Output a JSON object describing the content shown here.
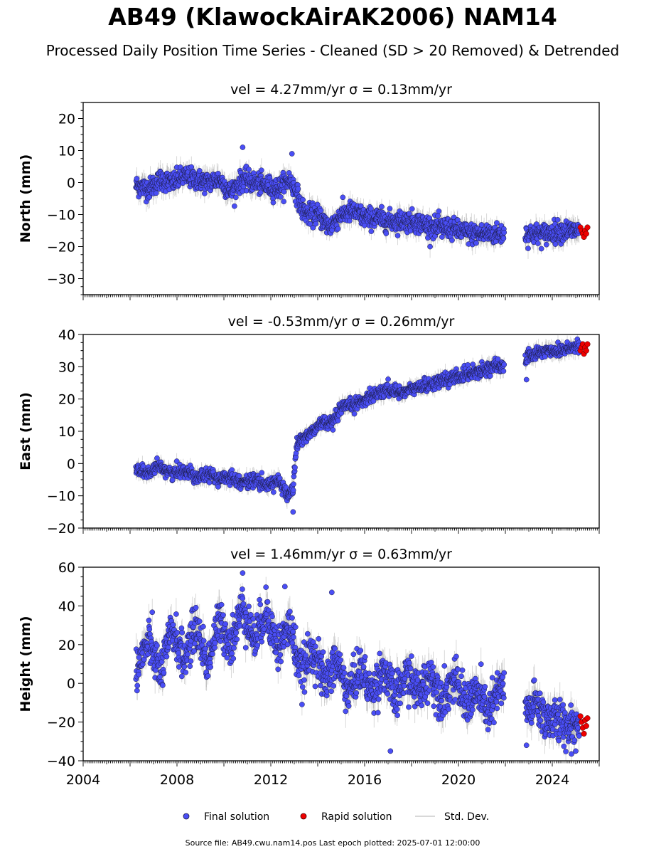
{
  "figure": {
    "title": "AB49 (KlawockAirAK2006) NAM14",
    "subtitle": "Processed Daily Position Time Series - Cleaned (SD > 20 Removed) & Detrended",
    "source_note": "Source file: AB49.cwu.nam14.pos  Last epoch plotted: 2025-07-01 12:00:00"
  },
  "legend": {
    "placement": "bottom-center",
    "items": [
      {
        "label": "Final solution",
        "marker": "circle",
        "color": "#4a4ef5"
      },
      {
        "label": "Rapid solution",
        "marker": "circle",
        "color": "#ee0000"
      },
      {
        "label": "Std. Dev.",
        "marker": "line",
        "color": "#cccccc"
      }
    ]
  },
  "colors": {
    "final": "#4a4ef5",
    "rapid": "#ee0000",
    "stddev": "#a8a8a8",
    "edge": "#1a1a40"
  },
  "chart_data": [
    {
      "type": "scatter",
      "title": "vel = 4.27mm/yr   σ = 0.13mm/yr",
      "ylabel": "North (mm)",
      "xlim": [
        2004.0,
        2026.0
      ],
      "ylim": [
        -35,
        25
      ],
      "yticks": [
        -30,
        -20,
        -10,
        0,
        10,
        20
      ],
      "ytick_labels": [
        "−30",
        "−20",
        "−10",
        "0",
        "10",
        "20"
      ],
      "xtick_labels_shown": false,
      "series": [
        {
          "name": "Final solution",
          "x": [
            2006.3,
            2006.8,
            2007.3,
            2007.8,
            2008.3,
            2008.8,
            2009.3,
            2009.8,
            2010.3,
            2010.8,
            2011.3,
            2011.8,
            2012.3,
            2012.8,
            2013.1,
            2013.3,
            2013.6,
            2014.0,
            2014.5,
            2015.0,
            2015.5,
            2016.0,
            2016.5,
            2017.0,
            2017.5,
            2018.0,
            2018.5,
            2019.0,
            2019.5,
            2020.0,
            2020.5,
            2021.0,
            2021.5,
            2021.9,
            2022.9,
            2023.3,
            2023.7,
            2024.3,
            2024.7,
            2025.1
          ],
          "y": [
            -1,
            -2,
            1,
            0,
            2,
            1,
            0,
            1,
            -3,
            1,
            0,
            -1,
            -2,
            1,
            -3,
            -8,
            -10,
            -10,
            -14,
            -10,
            -9,
            -11,
            -11,
            -12,
            -12,
            -12,
            -13,
            -14,
            -14,
            -15,
            -16,
            -16,
            -16,
            -16,
            -16,
            -16,
            -16,
            -15,
            -15,
            -15
          ]
        },
        {
          "name": "Rapid solution",
          "x": [
            2025.2,
            2025.25,
            2025.3,
            2025.35,
            2025.4,
            2025.45,
            2025.5
          ],
          "y": [
            -14,
            -15,
            -16,
            -17,
            -15,
            -16,
            -14
          ]
        }
      ],
      "outliers": {
        "x": [
          2010.8,
          2012.9,
          2019.3
        ],
        "y": [
          11,
          9,
          -17
        ]
      }
    },
    {
      "type": "scatter",
      "title": "vel = -0.53mm/yr   σ = 0.26mm/yr",
      "ylabel": "East (mm)",
      "xlim": [
        2004.0,
        2026.0
      ],
      "ylim": [
        -20,
        40
      ],
      "yticks": [
        -20,
        -10,
        0,
        10,
        20,
        30,
        40
      ],
      "ytick_labels": [
        "−20",
        "−10",
        "0",
        "10",
        "20",
        "30",
        "40"
      ],
      "xtick_labels_shown": false,
      "series": [
        {
          "name": "Final solution",
          "x": [
            2006.3,
            2006.8,
            2007.3,
            2007.8,
            2008.3,
            2008.8,
            2009.3,
            2009.8,
            2010.3,
            2010.8,
            2011.3,
            2011.8,
            2012.3,
            2012.7,
            2012.95,
            2013.1,
            2013.4,
            2013.8,
            2014.2,
            2014.6,
            2015.0,
            2015.4,
            2015.8,
            2016.2,
            2016.6,
            2017.0,
            2017.5,
            2018.0,
            2018.5,
            2019.0,
            2019.5,
            2020.0,
            2020.5,
            2021.0,
            2021.5,
            2021.9,
            2022.9,
            2023.3,
            2023.7,
            2024.3,
            2024.7,
            2025.1
          ],
          "y": [
            -2,
            -3,
            -1,
            -3,
            -2,
            -4,
            -3,
            -5,
            -4,
            -6,
            -5,
            -7,
            -5,
            -10,
            -8,
            6,
            8,
            10,
            13,
            12,
            17,
            18,
            19,
            21,
            22,
            23,
            22,
            23,
            24,
            25,
            26,
            27,
            28,
            29,
            30,
            30,
            33,
            34,
            35,
            35,
            36,
            36
          ]
        },
        {
          "name": "Rapid solution",
          "x": [
            2025.2,
            2025.25,
            2025.3,
            2025.35,
            2025.4,
            2025.45,
            2025.5
          ],
          "y": [
            35,
            36,
            37,
            34,
            36,
            35,
            37
          ]
        }
      ],
      "outliers": {
        "x": [
          2012.95,
          2022.9
        ],
        "y": [
          -15,
          26
        ]
      }
    },
    {
      "type": "scatter",
      "title": "vel = 1.46mm/yr   σ = 0.63mm/yr",
      "ylabel": "Height (mm)",
      "xlim": [
        2004.0,
        2026.0
      ],
      "ylim": [
        -40,
        60
      ],
      "yticks": [
        -40,
        -20,
        0,
        20,
        40,
        60
      ],
      "ytick_labels": [
        "−40",
        "−20",
        "0",
        "20",
        "40",
        "60"
      ],
      "xticks": [
        2004,
        2008,
        2012,
        2016,
        2020,
        2024
      ],
      "xtick_labels": [
        "2004",
        "2008",
        "2012",
        "2016",
        "2020",
        "2024"
      ],
      "series": [
        {
          "name": "Final solution",
          "x": [
            2006.3,
            2006.8,
            2007.3,
            2007.8,
            2008.3,
            2008.8,
            2009.3,
            2009.8,
            2010.3,
            2010.8,
            2011.3,
            2011.8,
            2012.3,
            2012.8,
            2013.3,
            2013.8,
            2014.3,
            2014.8,
            2015.3,
            2015.8,
            2016.3,
            2016.8,
            2017.3,
            2017.8,
            2018.3,
            2018.8,
            2019.3,
            2019.8,
            2020.3,
            2020.8,
            2021.3,
            2021.8,
            2022.9,
            2023.3,
            2023.7,
            2024.3,
            2024.7,
            2025.1
          ],
          "y": [
            8,
            22,
            5,
            28,
            12,
            30,
            10,
            32,
            20,
            40,
            22,
            38,
            18,
            30,
            5,
            18,
            0,
            12,
            -5,
            8,
            -5,
            8,
            -8,
            5,
            -5,
            5,
            -8,
            2,
            -10,
            -5,
            -15,
            -2,
            -15,
            -10,
            -18,
            -20,
            -22,
            -20
          ]
        },
        {
          "name": "Rapid solution",
          "x": [
            2025.2,
            2025.25,
            2025.3,
            2025.35,
            2025.4,
            2025.45,
            2025.5
          ],
          "y": [
            -17,
            -20,
            -23,
            -26,
            -19,
            -22,
            -18
          ]
        }
      ],
      "outliers": {
        "x": [
          2010.8,
          2012.6,
          2014.6,
          2017.1,
          2022.9,
          2025.0
        ],
        "y": [
          57,
          50,
          47,
          -35,
          -32,
          -35
        ]
      }
    }
  ]
}
